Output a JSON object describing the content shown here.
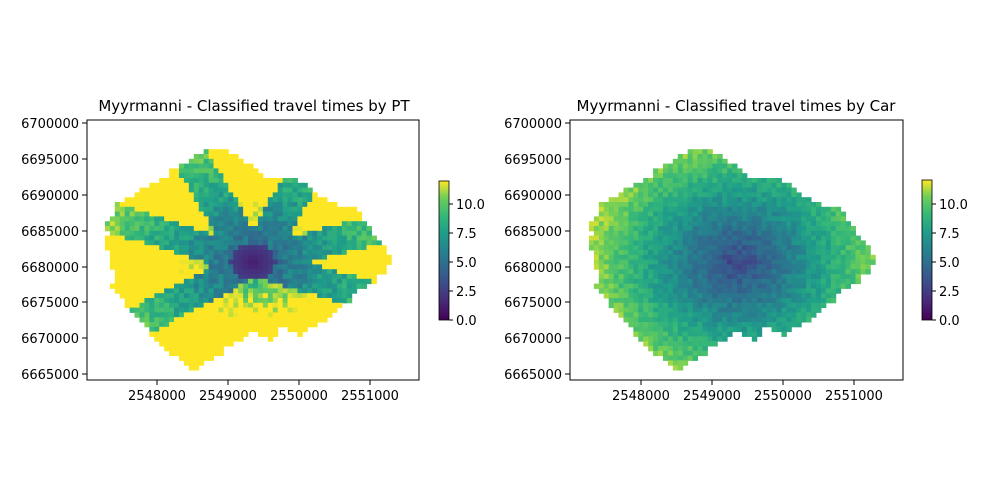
{
  "figure": {
    "maps": [
      {
        "title": "Myyrmanni - Classified travel times by PT",
        "mode": "pt",
        "x_ticks": [
          "2548000",
          "2549000",
          "2550000",
          "2551000"
        ],
        "y_ticks": [
          "6700000",
          "6695000",
          "6690000",
          "6685000",
          "6680000",
          "6675000",
          "6670000",
          "6665000"
        ],
        "colorbar": {
          "ticks": [
            "0.0",
            "2.5",
            "5.0",
            "7.5",
            "10.0"
          ],
          "min": 0,
          "max": 12,
          "colormap": "viridis"
        }
      },
      {
        "title": "Myyrmanni - Classified travel times by Car",
        "mode": "car",
        "x_ticks": [
          "2548000",
          "2549000",
          "2550000",
          "2551000"
        ],
        "y_ticks": [
          "6700000",
          "6695000",
          "6690000",
          "6685000",
          "6680000",
          "6675000",
          "6670000",
          "6665000"
        ],
        "colorbar": {
          "ticks": [
            "0.0",
            "2.5",
            "5.0",
            "7.5",
            "10.0"
          ],
          "min": 0,
          "max": 12,
          "colormap": "viridis"
        }
      }
    ]
  }
}
